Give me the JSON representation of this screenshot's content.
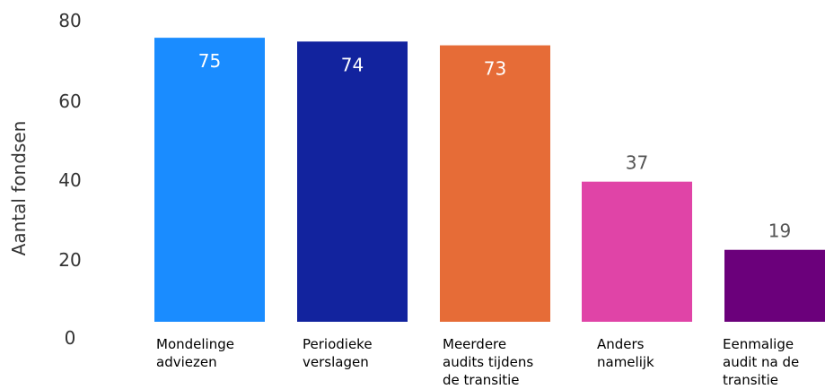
{
  "chart_data": {
    "type": "bar",
    "ylabel": "Aantal fondsen",
    "ylim": [
      0,
      80
    ],
    "yticks": [
      0,
      20,
      40,
      60,
      80
    ],
    "grid": false,
    "categories": [
      [
        "Mondelinge",
        "adviezen"
      ],
      [
        "Periodieke",
        "verslagen"
      ],
      [
        "Meerdere",
        "audits tijdens",
        "de transitie"
      ],
      [
        "Anders",
        "namelijk"
      ],
      [
        "Eenmalige",
        "audit na de",
        "transitie"
      ]
    ],
    "values": [
      75,
      74,
      73,
      37,
      19
    ],
    "colors": [
      "#1a8cff",
      "#12239e",
      "#e66c37",
      "#e044a7",
      "#6b007b"
    ],
    "label_inside": [
      true,
      true,
      true,
      false,
      false
    ],
    "label_colors": [
      "#ffffff",
      "#ffffff",
      "#ffffff",
      "#555555",
      "#555555"
    ]
  }
}
